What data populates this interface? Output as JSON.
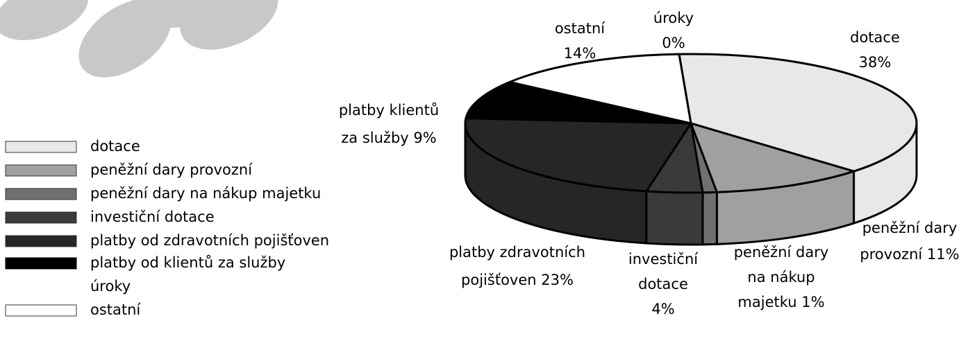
{
  "chart_data": {
    "type": "pie3d",
    "categories": [
      "dotace",
      "peněžní dary provozní",
      "peněžní dary na nákup majetku",
      "investiční dotace",
      "platby od zdravotních pojišťoven",
      "platby od klientů za služby",
      "úroky",
      "ostatní"
    ],
    "values": [
      38,
      11,
      1,
      4,
      23,
      9,
      0,
      14
    ],
    "colors": [
      "#e8e8e8",
      "#a0a0a0",
      "#707070",
      "#3a3a3a",
      "#262626",
      "#000000",
      null,
      "#ffffff"
    ],
    "data_labels": [
      [
        "dotace",
        "38%"
      ],
      [
        "peněžní dary",
        "provozní 11%"
      ],
      [
        "peněžní dary",
        "na nákup",
        "majetku 1%"
      ],
      [
        "investiční",
        "dotace",
        "4%"
      ],
      [
        "platby zdravotních",
        "pojišťoven 23%"
      ],
      [
        "platby klientů",
        "za služby 9%"
      ],
      [
        "úroky",
        "0%"
      ],
      [
        "ostatní",
        "14%"
      ]
    ],
    "legend": "left"
  }
}
